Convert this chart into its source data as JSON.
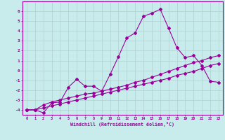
{
  "xlabel": "Windchill (Refroidissement éolien,°C)",
  "background_color": "#c8ecec",
  "grid_color": "#b0d0d0",
  "line_color": "#990099",
  "x_ticks": [
    0,
    1,
    2,
    3,
    4,
    5,
    6,
    7,
    8,
    9,
    10,
    11,
    12,
    13,
    14,
    15,
    16,
    17,
    18,
    19,
    20,
    21,
    22,
    23
  ],
  "ylim": [
    -4.5,
    7.0
  ],
  "xlim": [
    -0.5,
    23.5
  ],
  "y_ticks": [
    -4,
    -3,
    -2,
    -1,
    0,
    1,
    2,
    3,
    4,
    5,
    6
  ],
  "series": [
    {
      "x": [
        0,
        1,
        2,
        3,
        4,
        5,
        6,
        7,
        8,
        9,
        10,
        11,
        12,
        13,
        14,
        15,
        16,
        17,
        18,
        19,
        20,
        21,
        22,
        23
      ],
      "y": [
        -4.0,
        -4.0,
        -4.3,
        -3.3,
        -3.2,
        -1.7,
        -0.9,
        -1.6,
        -1.6,
        -2.1,
        -0.4,
        1.4,
        3.3,
        3.8,
        5.5,
        5.8,
        6.2,
        4.3,
        2.3,
        1.3,
        1.5,
        0.5,
        -1.1,
        -1.2
      ]
    },
    {
      "x": [
        0,
        1,
        2,
        3,
        4,
        5,
        6,
        7,
        8,
        9,
        10,
        11,
        12,
        13,
        14,
        15,
        16,
        17,
        18,
        19,
        20,
        21,
        22,
        23
      ],
      "y": [
        -4.0,
        -4.0,
        -3.5,
        -3.2,
        -3.0,
        -2.8,
        -2.6,
        -2.4,
        -2.3,
        -2.1,
        -1.9,
        -1.7,
        -1.5,
        -1.2,
        -1.0,
        -0.7,
        -0.4,
        -0.1,
        0.2,
        0.5,
        0.8,
        1.0,
        1.3,
        1.5
      ]
    },
    {
      "x": [
        0,
        1,
        2,
        3,
        4,
        5,
        6,
        7,
        8,
        9,
        10,
        11,
        12,
        13,
        14,
        15,
        16,
        17,
        18,
        19,
        20,
        21,
        22,
        23
      ],
      "y": [
        -4.0,
        -4.0,
        -3.8,
        -3.6,
        -3.4,
        -3.2,
        -3.0,
        -2.8,
        -2.6,
        -2.4,
        -2.2,
        -2.0,
        -1.8,
        -1.6,
        -1.4,
        -1.2,
        -1.0,
        -0.8,
        -0.5,
        -0.3,
        -0.1,
        0.2,
        0.5,
        0.7
      ]
    }
  ]
}
